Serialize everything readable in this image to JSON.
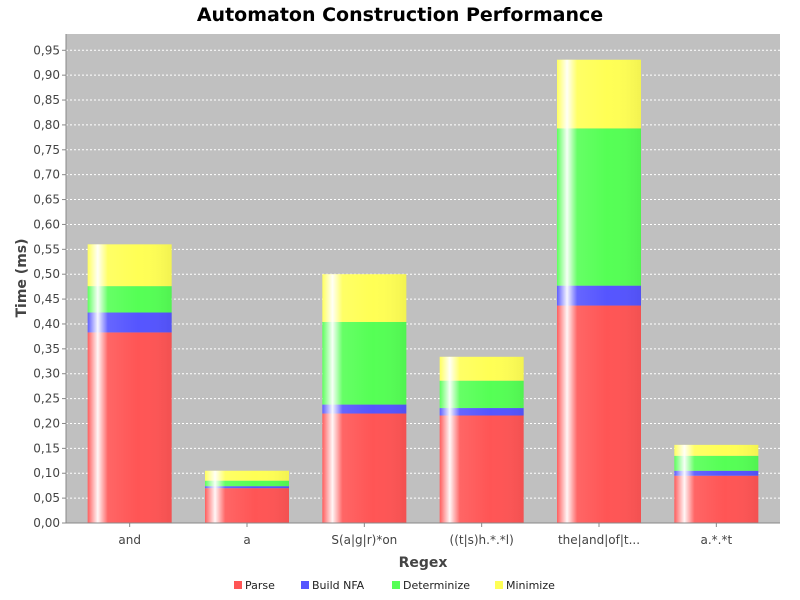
{
  "chart_data": {
    "type": "bar",
    "stacked": true,
    "title": "Automaton Construction Performance",
    "xlabel": "Regex",
    "ylabel": "Time (ms)",
    "ylim": [
      0,
      0.97
    ],
    "yticks": [
      "0,00",
      "0,05",
      "0,10",
      "0,15",
      "0,20",
      "0,25",
      "0,30",
      "0,35",
      "0,40",
      "0,45",
      "0,50",
      "0,55",
      "0,60",
      "0,65",
      "0,70",
      "0,75",
      "0,80",
      "0,85",
      "0,90",
      "0,95"
    ],
    "categories": [
      "and",
      "a",
      "S(a|g|r)*on",
      "((t|s)h.*.*l)",
      "the|and|of|t...",
      "a.*.*t"
    ],
    "series": [
      {
        "name": "Parse",
        "color": "#ff5555",
        "values": [
          0.383,
          0.07,
          0.22,
          0.216,
          0.437,
          0.095
        ]
      },
      {
        "name": "Build NFA",
        "color": "#5555ff",
        "values": [
          0.04,
          0.004,
          0.018,
          0.015,
          0.04,
          0.01
        ]
      },
      {
        "name": "Determinize",
        "color": "#55ff55",
        "values": [
          0.053,
          0.011,
          0.166,
          0.055,
          0.316,
          0.03
        ]
      },
      {
        "name": "Minimize",
        "color": "#ffff55",
        "values": [
          0.084,
          0.02,
          0.096,
          0.048,
          0.138,
          0.022
        ]
      }
    ],
    "grid": true,
    "legend_position": "bottom"
  }
}
